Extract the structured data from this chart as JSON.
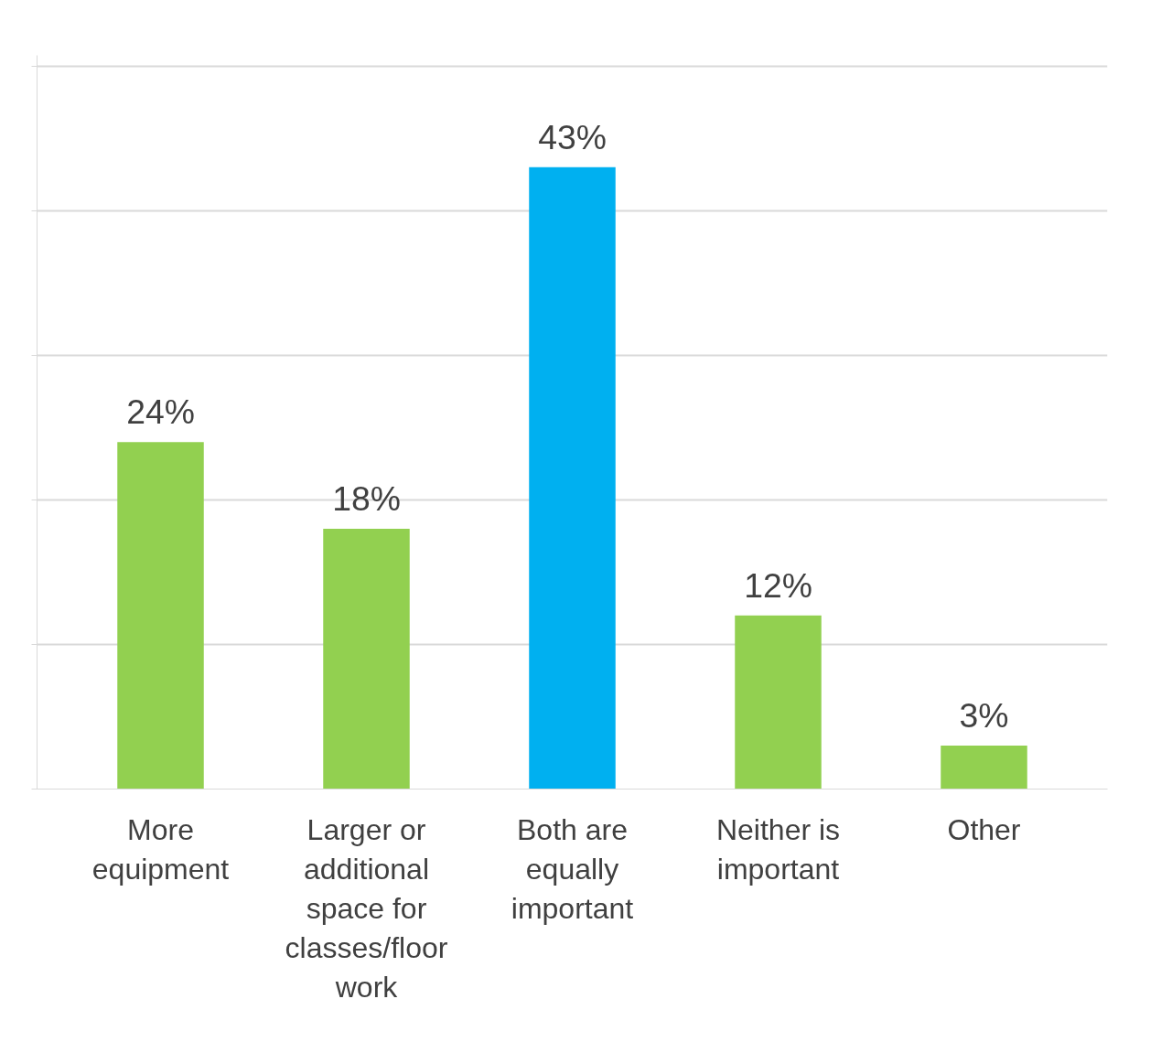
{
  "chart_data": {
    "type": "bar",
    "categories": [
      "More equipment",
      "Larger or additional space for classes/floor work",
      "Both are equally important",
      "Neither is important",
      "Other"
    ],
    "values": [
      24,
      18,
      43,
      12,
      3
    ],
    "value_labels": [
      "24%",
      "18%",
      "43%",
      "12%",
      "3%"
    ],
    "colors": [
      "#92d050",
      "#92d050",
      "#00b0f0",
      "#92d050",
      "#92d050"
    ],
    "grid": "y",
    "tick_labels": "x"
  }
}
